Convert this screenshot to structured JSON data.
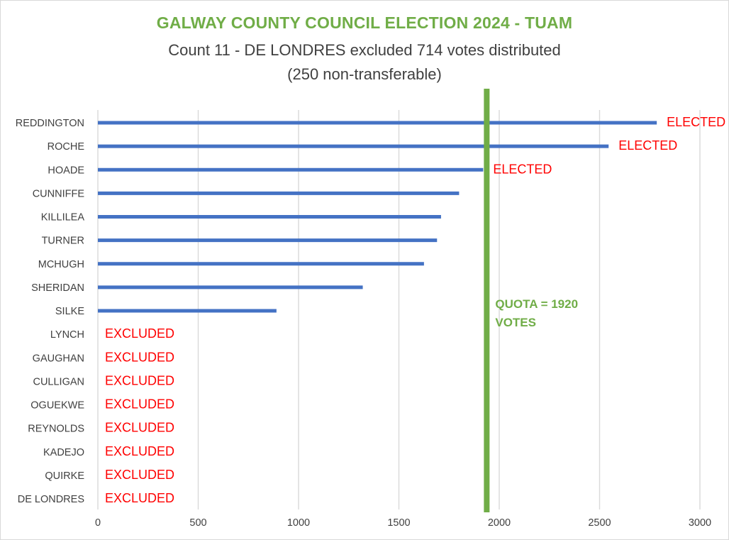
{
  "chart_data": {
    "type": "bar",
    "orientation": "horizontal",
    "title": "GALWAY COUNTY COUNCIL ELECTION 2024 - TUAM",
    "subtitle_lines": [
      "Count 11 - DE LONDRES excluded 714 votes distributed",
      "(250 non-transferable)"
    ],
    "categories": [
      "REDDINGTON",
      "ROCHE",
      "HOADE",
      "CUNNIFFE",
      "KILLILEA",
      "TURNER",
      "MCHUGH",
      "SHERIDAN",
      "SILKE",
      "LYNCH",
      "GAUGHAN",
      "CULLIGAN",
      "OGUEKWE",
      "REYNOLDS",
      "KADEJO",
      "QUIRKE",
      "DE LONDRES"
    ],
    "values": [
      2785,
      2545,
      1920,
      1800,
      1710,
      1690,
      1625,
      1320,
      890,
      0,
      0,
      0,
      0,
      0,
      0,
      0,
      0
    ],
    "status": [
      "ELECTED",
      "ELECTED",
      "ELECTED",
      "",
      "",
      "",
      "",
      "",
      "",
      "EXCLUDED",
      "EXCLUDED",
      "EXCLUDED",
      "EXCLUDED",
      "EXCLUDED",
      "EXCLUDED",
      "EXCLUDED",
      "EXCLUDED"
    ],
    "xlim": [
      0,
      3000
    ],
    "xticks": [
      0,
      500,
      1000,
      1500,
      2000,
      2500,
      3000
    ],
    "grid": true,
    "legend": "none",
    "quota": {
      "value": 1920,
      "label_lines": [
        "QUOTA = 1920",
        "VOTES"
      ]
    },
    "colors": {
      "bar": "#4472c4",
      "quota": "#70ad47",
      "title": "#70ad47",
      "status": "#ff0000",
      "grid": "#d9d9d9",
      "text": "#404040"
    }
  }
}
